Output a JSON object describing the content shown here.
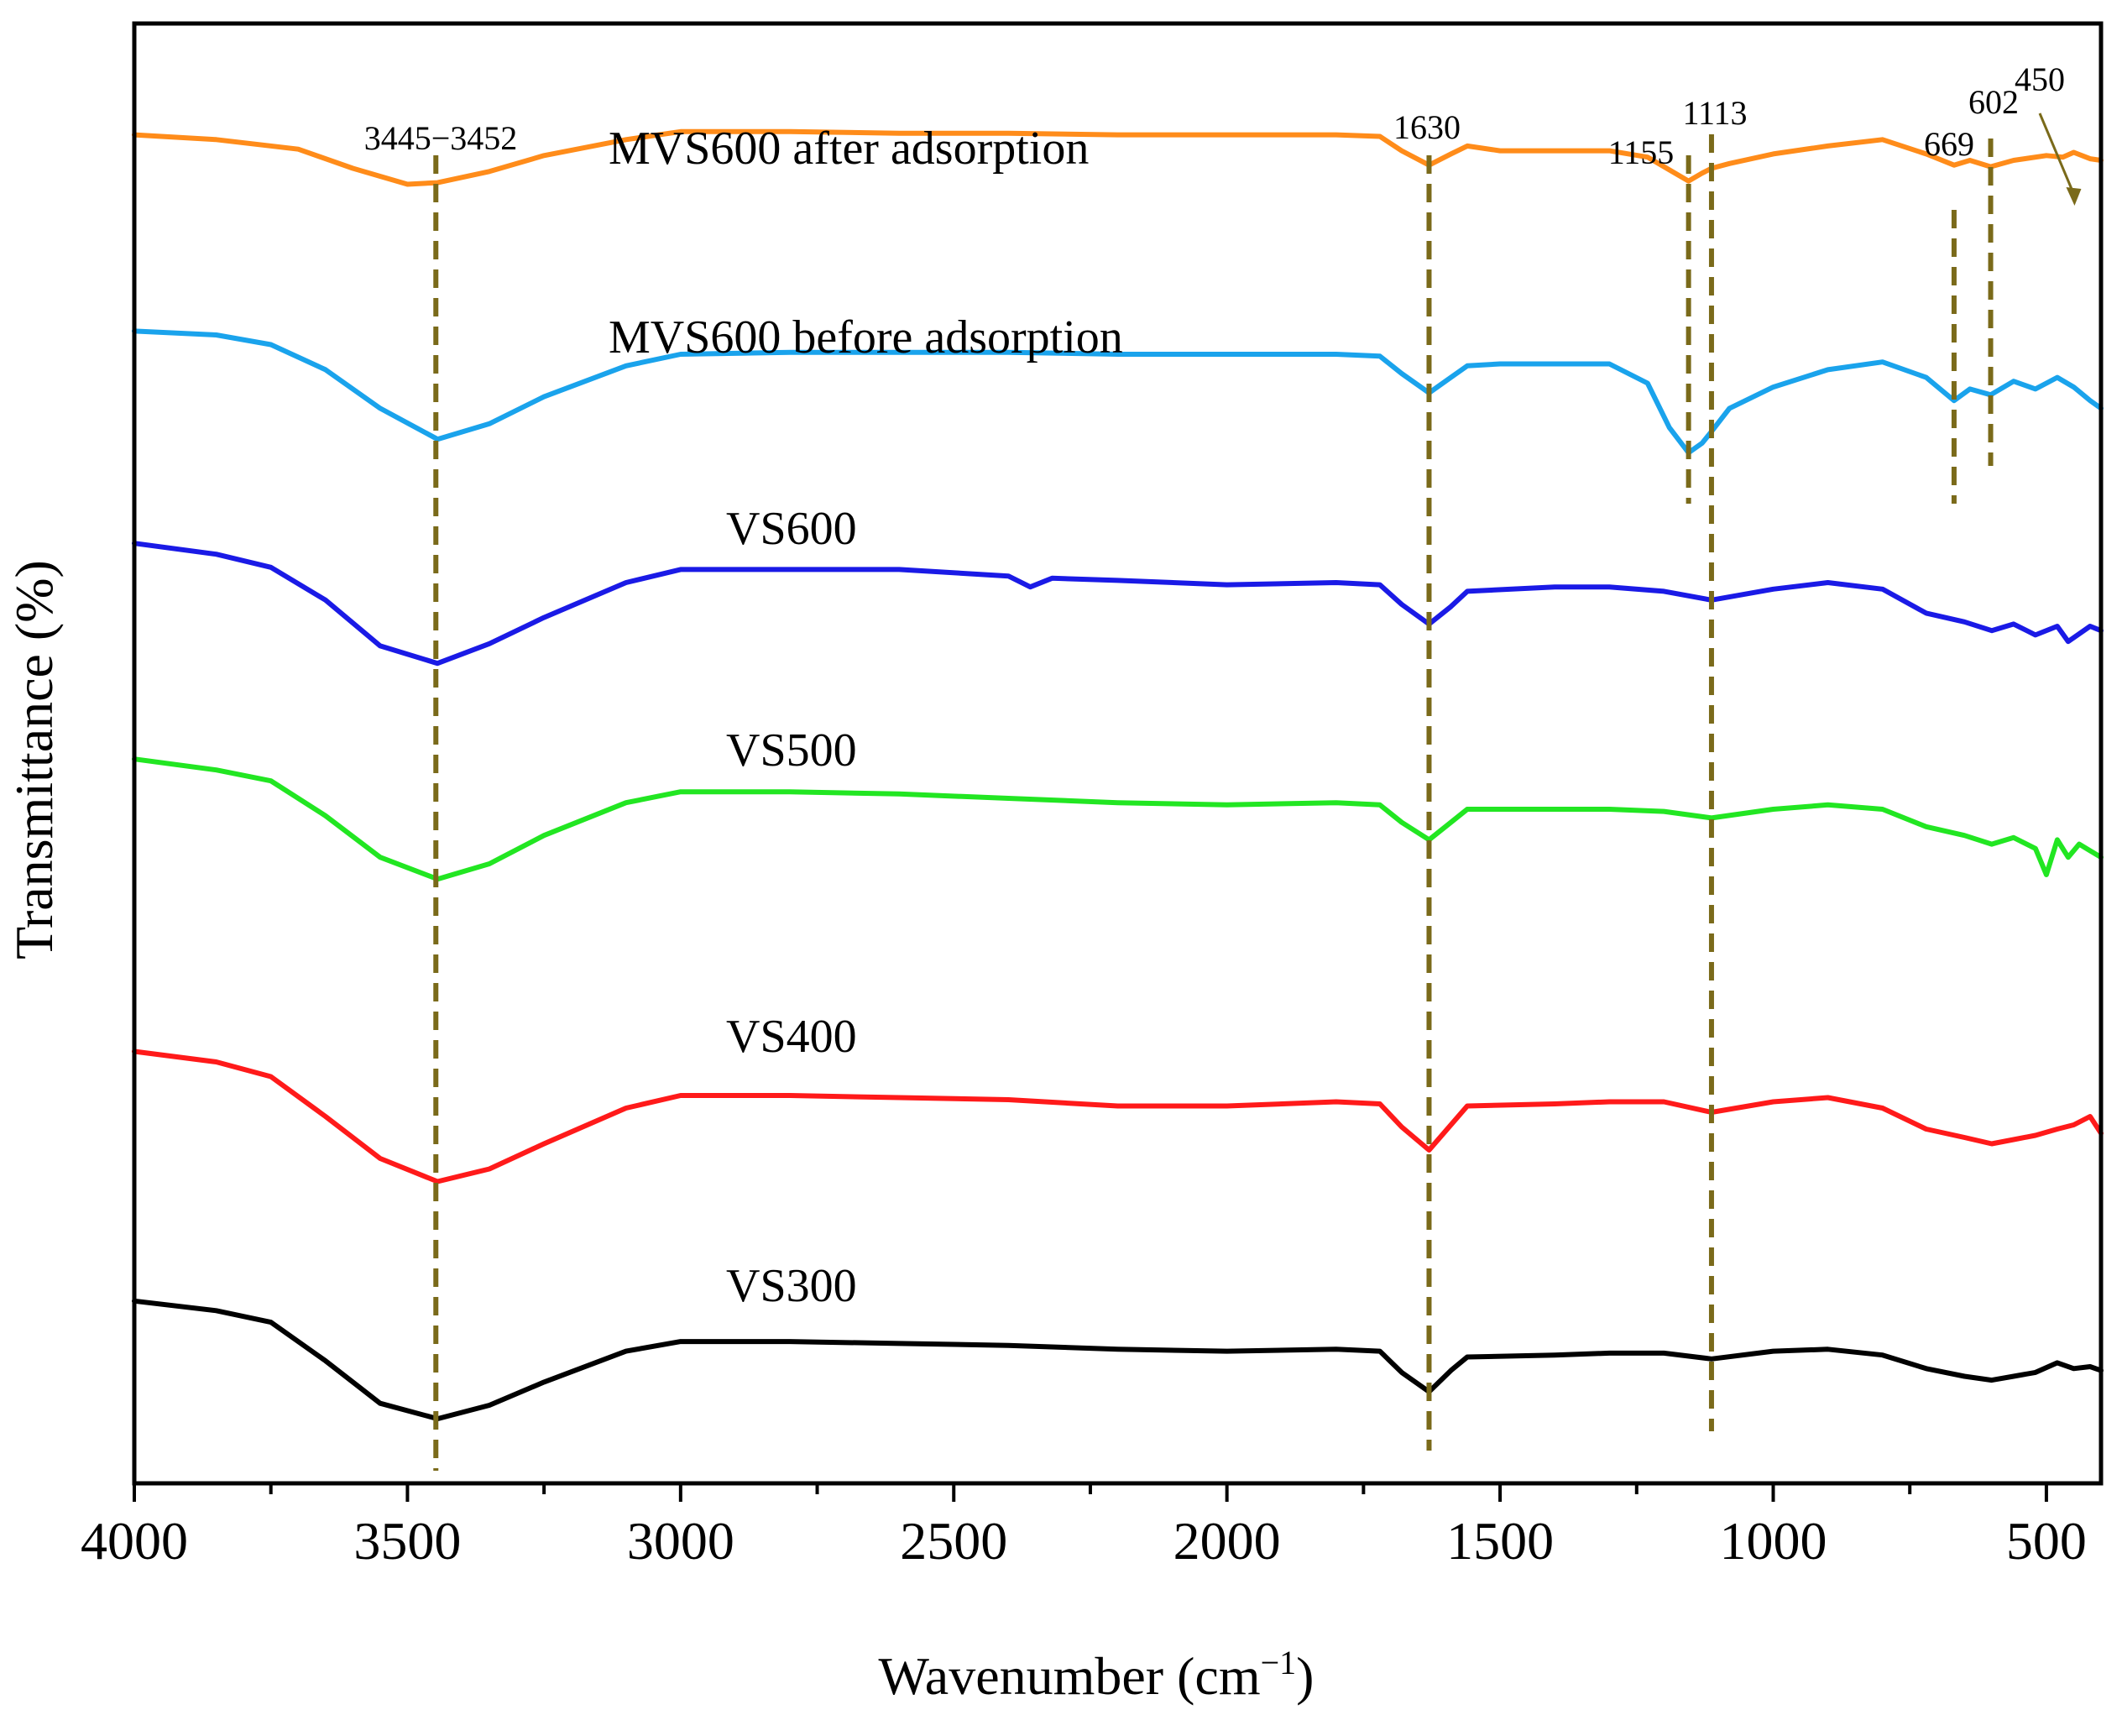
{
  "chart_data": {
    "type": "line",
    "title": "",
    "xlabel": "Wavenumber (cm",
    "xlabel_sup": "−1",
    "xlabel_close": ")",
    "ylabel": "Transmittance (%)",
    "xlim": [
      4000,
      400
    ],
    "x_reversed": true,
    "x_ticks": [
      4000,
      3500,
      3000,
      2500,
      2000,
      1500,
      1000,
      500
    ],
    "y_ticks_shown": false,
    "series": [
      {
        "name": "MVS600 after adsorption",
        "color": "#ff8c1a",
        "points": [
          [
            4000,
            76
          ],
          [
            3850,
            73
          ],
          [
            3700,
            67
          ],
          [
            3600,
            55
          ],
          [
            3500,
            45
          ],
          [
            3445,
            46
          ],
          [
            3350,
            53
          ],
          [
            3250,
            63
          ],
          [
            3100,
            73
          ],
          [
            3000,
            78
          ],
          [
            2800,
            78
          ],
          [
            2600,
            77
          ],
          [
            2400,
            77
          ],
          [
            2200,
            76
          ],
          [
            2000,
            76
          ],
          [
            1800,
            76
          ],
          [
            1720,
            75
          ],
          [
            1680,
            66
          ],
          [
            1630,
            57
          ],
          [
            1590,
            64
          ],
          [
            1560,
            69
          ],
          [
            1500,
            66
          ],
          [
            1400,
            66
          ],
          [
            1300,
            66
          ],
          [
            1230,
            62
          ],
          [
            1190,
            54
          ],
          [
            1155,
            47
          ],
          [
            1130,
            52
          ],
          [
            1113,
            55
          ],
          [
            1080,
            58
          ],
          [
            1000,
            64
          ],
          [
            900,
            69
          ],
          [
            800,
            73
          ],
          [
            720,
            64
          ],
          [
            669,
            57
          ],
          [
            640,
            60
          ],
          [
            602,
            56
          ],
          [
            560,
            60
          ],
          [
            500,
            63
          ],
          [
            470,
            62
          ],
          [
            450,
            65
          ],
          [
            420,
            61
          ],
          [
            400,
            60
          ]
        ]
      },
      {
        "name": "MVS600 before adsorption",
        "color": "#1aa3ec",
        "points": [
          [
            4000,
            72
          ],
          [
            3850,
            70
          ],
          [
            3750,
            65
          ],
          [
            3650,
            52
          ],
          [
            3550,
            32
          ],
          [
            3445,
            16
          ],
          [
            3350,
            24
          ],
          [
            3250,
            38
          ],
          [
            3100,
            54
          ],
          [
            3000,
            60
          ],
          [
            2800,
            61
          ],
          [
            2600,
            61
          ],
          [
            2400,
            61
          ],
          [
            2200,
            60
          ],
          [
            2000,
            60
          ],
          [
            1800,
            60
          ],
          [
            1720,
            59
          ],
          [
            1680,
            50
          ],
          [
            1630,
            40
          ],
          [
            1590,
            48
          ],
          [
            1560,
            54
          ],
          [
            1500,
            55
          ],
          [
            1400,
            55
          ],
          [
            1300,
            55
          ],
          [
            1230,
            45
          ],
          [
            1190,
            22
          ],
          [
            1155,
            9
          ],
          [
            1130,
            14
          ],
          [
            1113,
            20
          ],
          [
            1080,
            32
          ],
          [
            1000,
            43
          ],
          [
            900,
            52
          ],
          [
            800,
            56
          ],
          [
            720,
            48
          ],
          [
            669,
            36
          ],
          [
            640,
            42
          ],
          [
            602,
            39
          ],
          [
            560,
            46
          ],
          [
            520,
            42
          ],
          [
            480,
            48
          ],
          [
            450,
            43
          ],
          [
            420,
            36
          ],
          [
            400,
            32
          ]
        ]
      },
      {
        "name": "VS600",
        "color": "#1a1ae6",
        "points": [
          [
            4000,
            78
          ],
          [
            3850,
            73
          ],
          [
            3750,
            67
          ],
          [
            3650,
            52
          ],
          [
            3550,
            31
          ],
          [
            3445,
            23
          ],
          [
            3350,
            32
          ],
          [
            3250,
            44
          ],
          [
            3100,
            60
          ],
          [
            3000,
            66
          ],
          [
            2800,
            66
          ],
          [
            2600,
            66
          ],
          [
            2400,
            63
          ],
          [
            2360,
            58
          ],
          [
            2320,
            62
          ],
          [
            2200,
            61
          ],
          [
            2000,
            59
          ],
          [
            1800,
            60
          ],
          [
            1720,
            59
          ],
          [
            1680,
            50
          ],
          [
            1630,
            41
          ],
          [
            1590,
            49
          ],
          [
            1560,
            56
          ],
          [
            1400,
            58
          ],
          [
            1300,
            58
          ],
          [
            1200,
            56
          ],
          [
            1113,
            52
          ],
          [
            1000,
            57
          ],
          [
            900,
            60
          ],
          [
            800,
            57
          ],
          [
            720,
            46
          ],
          [
            650,
            42
          ],
          [
            600,
            38
          ],
          [
            560,
            41
          ],
          [
            520,
            36
          ],
          [
            480,
            40
          ],
          [
            460,
            33
          ],
          [
            420,
            40
          ],
          [
            400,
            38
          ]
        ]
      },
      {
        "name": "VS500",
        "color": "#22e622",
        "points": [
          [
            4000,
            83
          ],
          [
            3850,
            78
          ],
          [
            3750,
            73
          ],
          [
            3650,
            57
          ],
          [
            3550,
            38
          ],
          [
            3445,
            28
          ],
          [
            3350,
            35
          ],
          [
            3250,
            48
          ],
          [
            3100,
            63
          ],
          [
            3000,
            68
          ],
          [
            2800,
            68
          ],
          [
            2600,
            67
          ],
          [
            2400,
            65
          ],
          [
            2200,
            63
          ],
          [
            2000,
            62
          ],
          [
            1800,
            63
          ],
          [
            1720,
            62
          ],
          [
            1680,
            54
          ],
          [
            1630,
            46
          ],
          [
            1590,
            54
          ],
          [
            1560,
            60
          ],
          [
            1400,
            60
          ],
          [
            1300,
            60
          ],
          [
            1200,
            59
          ],
          [
            1113,
            56
          ],
          [
            1000,
            60
          ],
          [
            900,
            62
          ],
          [
            800,
            60
          ],
          [
            720,
            52
          ],
          [
            650,
            48
          ],
          [
            600,
            44
          ],
          [
            560,
            47
          ],
          [
            520,
            42
          ],
          [
            500,
            30
          ],
          [
            480,
            46
          ],
          [
            460,
            38
          ],
          [
            440,
            44
          ],
          [
            420,
            41
          ],
          [
            400,
            38
          ]
        ]
      },
      {
        "name": "VS400",
        "color": "#ff1a1a",
        "points": [
          [
            4000,
            77
          ],
          [
            3850,
            72
          ],
          [
            3750,
            65
          ],
          [
            3650,
            46
          ],
          [
            3550,
            26
          ],
          [
            3445,
            15
          ],
          [
            3350,
            21
          ],
          [
            3250,
            33
          ],
          [
            3100,
            50
          ],
          [
            3000,
            56
          ],
          [
            2800,
            56
          ],
          [
            2600,
            55
          ],
          [
            2400,
            54
          ],
          [
            2200,
            51
          ],
          [
            2000,
            51
          ],
          [
            1800,
            53
          ],
          [
            1720,
            52
          ],
          [
            1680,
            41
          ],
          [
            1630,
            30
          ],
          [
            1590,
            42
          ],
          [
            1560,
            51
          ],
          [
            1400,
            52
          ],
          [
            1300,
            53
          ],
          [
            1200,
            53
          ],
          [
            1113,
            48
          ],
          [
            1000,
            53
          ],
          [
            900,
            55
          ],
          [
            800,
            50
          ],
          [
            720,
            40
          ],
          [
            650,
            36
          ],
          [
            600,
            33
          ],
          [
            560,
            35
          ],
          [
            520,
            37
          ],
          [
            480,
            40
          ],
          [
            450,
            42
          ],
          [
            420,
            46
          ],
          [
            400,
            38
          ]
        ]
      },
      {
        "name": "VS300",
        "color": "#000000",
        "points": [
          [
            4000,
            74
          ],
          [
            3850,
            69
          ],
          [
            3750,
            63
          ],
          [
            3650,
            43
          ],
          [
            3550,
            21
          ],
          [
            3445,
            13
          ],
          [
            3350,
            20
          ],
          [
            3250,
            32
          ],
          [
            3100,
            48
          ],
          [
            3000,
            53
          ],
          [
            2800,
            53
          ],
          [
            2600,
            52
          ],
          [
            2400,
            51
          ],
          [
            2200,
            49
          ],
          [
            2000,
            48
          ],
          [
            1800,
            49
          ],
          [
            1720,
            48
          ],
          [
            1680,
            37
          ],
          [
            1630,
            27
          ],
          [
            1590,
            38
          ],
          [
            1560,
            45
          ],
          [
            1400,
            46
          ],
          [
            1300,
            47
          ],
          [
            1200,
            47
          ],
          [
            1113,
            44
          ],
          [
            1000,
            48
          ],
          [
            900,
            49
          ],
          [
            800,
            46
          ],
          [
            720,
            39
          ],
          [
            650,
            35
          ],
          [
            600,
            33
          ],
          [
            560,
            35
          ],
          [
            520,
            37
          ],
          [
            480,
            42
          ],
          [
            450,
            39
          ],
          [
            420,
            40
          ],
          [
            400,
            38
          ]
        ]
      }
    ],
    "peak_markers": [
      {
        "label": "3445−3452",
        "x": 3448
      },
      {
        "label": "1630",
        "x": 1630
      },
      {
        "label": "1155",
        "x": 1155
      },
      {
        "label": "1113",
        "x": 1113
      },
      {
        "label": "669",
        "x": 669
      },
      {
        "label": "602",
        "x": 602
      },
      {
        "label": "450",
        "x": 450
      }
    ],
    "colors": {
      "marker": "#7a6a1a",
      "axis": "#000000"
    }
  }
}
